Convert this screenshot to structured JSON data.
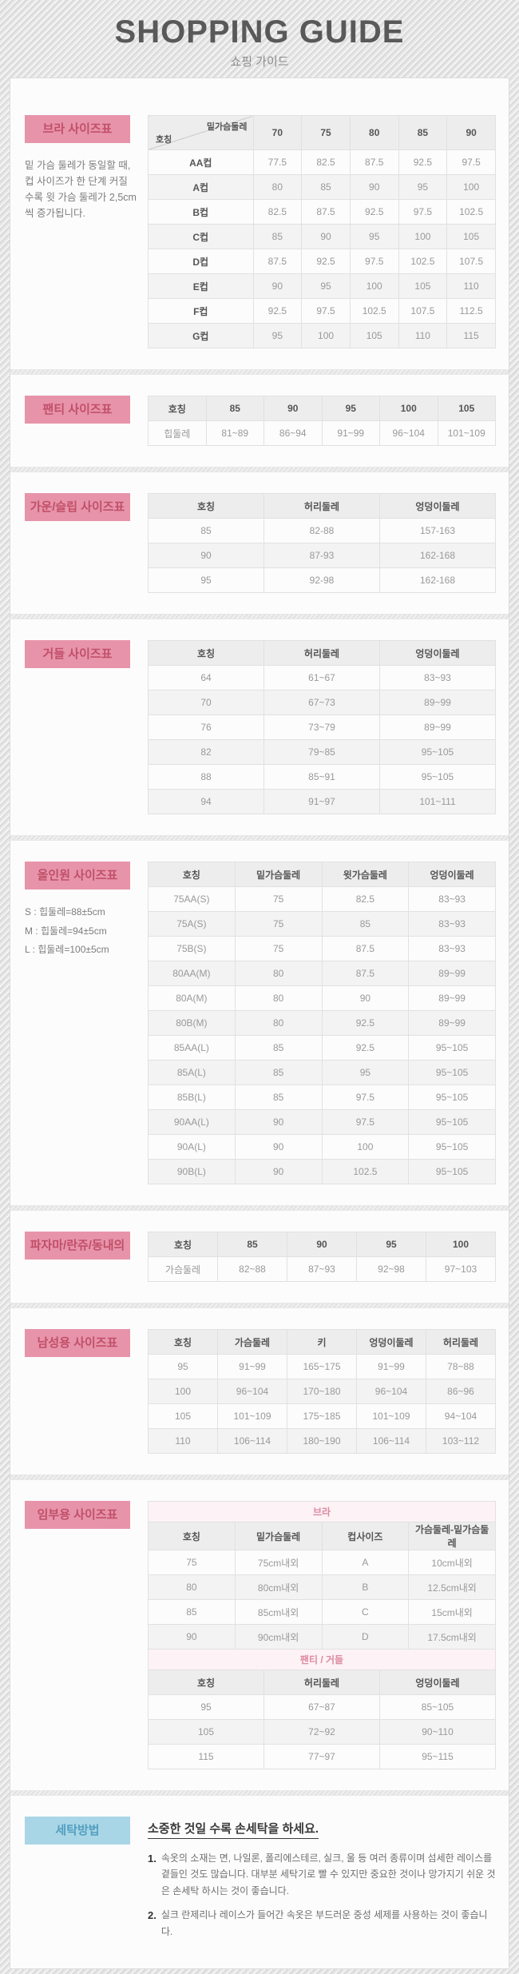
{
  "page": {
    "title": "SHOPPING GUIDE",
    "subtitle": "쇼핑 가이드"
  },
  "colors": {
    "accent_pink": "#e794ab",
    "accent_pink_text": "#c14f68",
    "accent_blue": "#a9d6e6",
    "accent_blue_text": "#519fc0",
    "subhead_bg": "#fdf2f5",
    "subhead_text": "#dc8ba1"
  },
  "sections": {
    "bra": {
      "label": "브라 사이즈표",
      "note": "밑 가슴 둘레가 동일할 때, 컵 사이즈가 한 단계 커질수록 윗 가슴 둘레가 2,5cm씩 증가됩니다.",
      "table": {
        "header": [
          {
            "top": "밑가슴둘레",
            "bottom": "호칭"
          },
          "70",
          "75",
          "80",
          "85",
          "90"
        ],
        "rows": [
          [
            "AA컵",
            "77.5",
            "82.5",
            "87.5",
            "92.5",
            "97.5"
          ],
          [
            "A컵",
            "80",
            "85",
            "90",
            "95",
            "100"
          ],
          [
            "B컵",
            "82.5",
            "87.5",
            "92.5",
            "97.5",
            "102.5"
          ],
          [
            "C컵",
            "85",
            "90",
            "95",
            "100",
            "105"
          ],
          [
            "D컵",
            "87.5",
            "92.5",
            "97.5",
            "102.5",
            "107.5"
          ],
          [
            "E컵",
            "90",
            "95",
            "100",
            "105",
            "110"
          ],
          [
            "F컵",
            "92.5",
            "97.5",
            "102.5",
            "107.5",
            "112.5"
          ],
          [
            "G컵",
            "95",
            "100",
            "105",
            "110",
            "115"
          ]
        ]
      }
    },
    "panty": {
      "label": "팬티 사이즈표",
      "table": {
        "header": [
          "호칭",
          "85",
          "90",
          "95",
          "100",
          "105"
        ],
        "rows": [
          [
            "힙둘레",
            "81~89",
            "86~94",
            "91~99",
            "96~104",
            "101~109"
          ]
        ]
      }
    },
    "gown": {
      "label": "가운/슬립 사이즈표",
      "table": {
        "header": [
          "호칭",
          "허리둘레",
          "엉덩이둘레"
        ],
        "rows": [
          [
            "85",
            "82-88",
            "157-163"
          ],
          [
            "90",
            "87-93",
            "162-168"
          ],
          [
            "95",
            "92-98",
            "162-168"
          ]
        ]
      }
    },
    "girdle": {
      "label": "거들 사이즈표",
      "table": {
        "header": [
          "호칭",
          "허리둘레",
          "엉덩이둘레"
        ],
        "rows": [
          [
            "64",
            "61~67",
            "83~93"
          ],
          [
            "70",
            "67~73",
            "89~99"
          ],
          [
            "76",
            "73~79",
            "89~99"
          ],
          [
            "82",
            "79~85",
            "95~105"
          ],
          [
            "88",
            "85~91",
            "95~105"
          ],
          [
            "94",
            "91~97",
            "101~111"
          ]
        ]
      }
    },
    "allinone": {
      "label": "올인원 사이즈표",
      "notes": [
        "S : 힙둘레=88±5cm",
        "M : 힙둘레=94±5cm",
        "L : 힙둘레=100±5cm"
      ],
      "table": {
        "header": [
          "호칭",
          "밑가슴둘레",
          "윗가슴둘레",
          "엉덩이둘레"
        ],
        "rows": [
          [
            "75AA(S)",
            "75",
            "82.5",
            "83~93"
          ],
          [
            "75A(S)",
            "75",
            "85",
            "83~93"
          ],
          [
            "75B(S)",
            "75",
            "87.5",
            "83~93"
          ],
          [
            "80AA(M)",
            "80",
            "87.5",
            "89~99"
          ],
          [
            "80A(M)",
            "80",
            "90",
            "89~99"
          ],
          [
            "80B(M)",
            "80",
            "92.5",
            "89~99"
          ],
          [
            "85AA(L)",
            "85",
            "92.5",
            "95~105"
          ],
          [
            "85A(L)",
            "85",
            "95",
            "95~105"
          ],
          [
            "85B(L)",
            "85",
            "97.5",
            "95~105"
          ],
          [
            "90AA(L)",
            "90",
            "97.5",
            "95~105"
          ],
          [
            "90A(L)",
            "90",
            "100",
            "95~105"
          ],
          [
            "90B(L)",
            "90",
            "102.5",
            "95~105"
          ]
        ]
      }
    },
    "pajama": {
      "label": "파자마/란쥬/동내의",
      "table": {
        "header": [
          "호칭",
          "85",
          "90",
          "95",
          "100"
        ],
        "rows": [
          [
            "가슴둘레",
            "82~88",
            "87~93",
            "92~98",
            "97~103"
          ]
        ]
      }
    },
    "mens": {
      "label": "남성용 사이즈표",
      "table": {
        "header": [
          "호칭",
          "가슴둘레",
          "키",
          "엉덩이둘레",
          "허리둘레"
        ],
        "rows": [
          [
            "95",
            "91~99",
            "165~175",
            "91~99",
            "78~88"
          ],
          [
            "100",
            "96~104",
            "170~180",
            "96~104",
            "86~96"
          ],
          [
            "105",
            "101~109",
            "175~185",
            "101~109",
            "94~104"
          ],
          [
            "110",
            "106~114",
            "180~190",
            "106~114",
            "103~112"
          ]
        ]
      }
    },
    "maternity": {
      "label": "임부용 사이즈표",
      "bra": {
        "title": "브라",
        "header": [
          "호칭",
          "밑가슴둘레",
          "컵사이즈",
          "가슴둘레-밑가슴둘레"
        ],
        "rows": [
          [
            "75",
            "75cm내외",
            "A",
            "10cm내외"
          ],
          [
            "80",
            "80cm내외",
            "B",
            "12.5cm내외"
          ],
          [
            "85",
            "85cm내외",
            "C",
            "15cm내외"
          ],
          [
            "90",
            "90cm내외",
            "D",
            "17.5cm내외"
          ]
        ]
      },
      "panty_girdle": {
        "title": "팬티 / 거들",
        "header": [
          "호칭",
          "허리둘레",
          "엉덩이둘레"
        ],
        "rows": [
          [
            "95",
            "67~87",
            "85~105"
          ],
          [
            "105",
            "72~92",
            "90~110"
          ],
          [
            "115",
            "77~97",
            "95~115"
          ]
        ]
      }
    },
    "washing": {
      "label": "세탁방법",
      "title": "소중한 것일 수록 손세탁을 하세요.",
      "items": [
        {
          "num": "1.",
          "text": "속옷의 소재는 면, 나일론, 폴리에스테르, 실크, 울 등 여러 종류이며 섬세한 레이스를 곁들인 것도 많습니다. 대부분 세탁기로 빨 수 있지만 중요한 것이나 망가지기 쉬운 것은 손세탁 하시는 것이 좋습니다."
        },
        {
          "num": "2.",
          "text": "실크 란제리나 레이스가 들어간 속옷은 부드러운 중성 세제를 사용하는 것이 좋습니다."
        }
      ]
    }
  }
}
